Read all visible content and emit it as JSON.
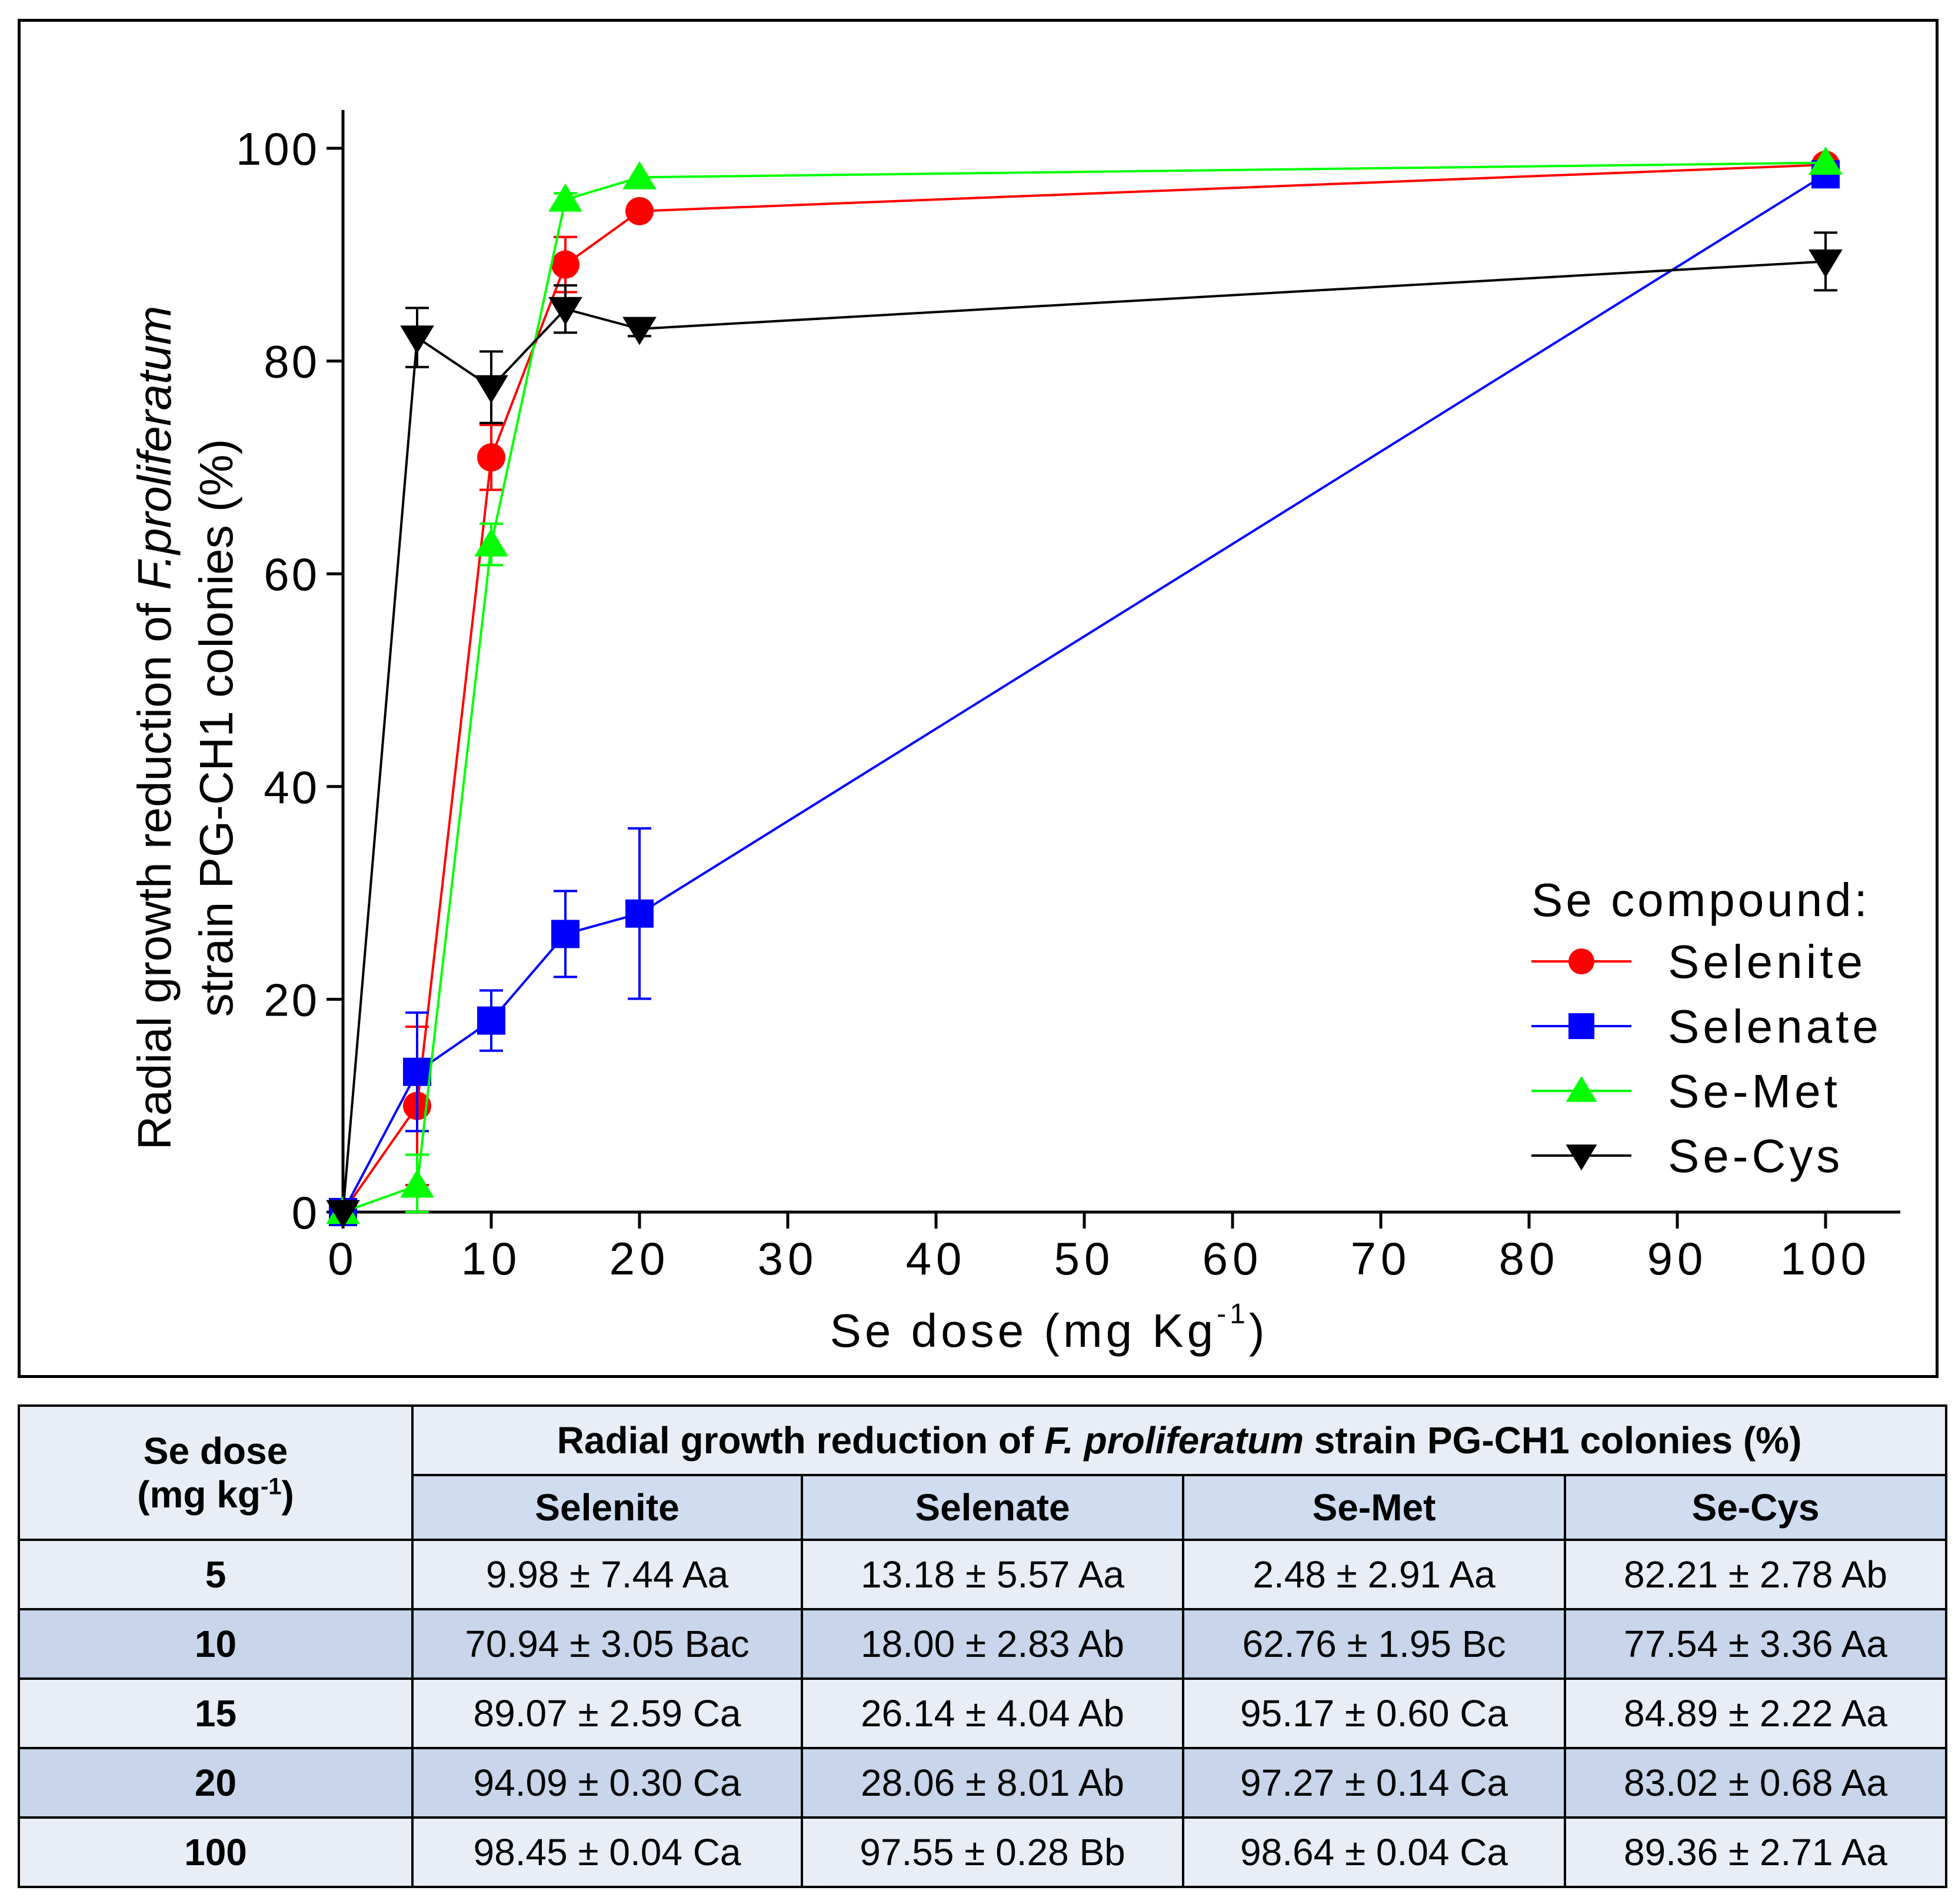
{
  "chart_data": {
    "type": "line",
    "xlabel": "Se dose (mg Kg",
    "xlabel_sup": "-1",
    "xlabel_end": ")",
    "ylabel_line1_prefix": "Radial growth reduction of ",
    "ylabel_line1_italic": "F.proliferatum",
    "ylabel_line2": "strain PG-CH1 colonies (%)",
    "xlim": [
      0,
      105
    ],
    "ylim": [
      0,
      100
    ],
    "x_ticks": [
      0,
      10,
      20,
      30,
      40,
      50,
      60,
      70,
      80,
      90,
      100
    ],
    "y_ticks": [
      0,
      20,
      40,
      60,
      80,
      100
    ],
    "x_tick_labels": [
      "0",
      "10",
      "20",
      "30",
      "40",
      "50",
      "60",
      "70",
      "80",
      "90",
      "100"
    ],
    "y_tick_labels": [
      "0",
      "20",
      "40",
      "60",
      "80",
      "100"
    ],
    "legend_title": "Se compound:",
    "legend_position": "bottom-right",
    "grid": false,
    "x": [
      0,
      5,
      10,
      15,
      20,
      100
    ],
    "series": [
      {
        "name": "Selenite",
        "color": "#ff0000",
        "marker": "circle",
        "values": [
          0,
          9.98,
          70.94,
          89.07,
          94.09,
          98.45
        ],
        "errors": [
          0,
          7.44,
          3.05,
          2.59,
          0.3,
          0.04
        ]
      },
      {
        "name": "Selenate",
        "color": "#0000ff",
        "marker": "square",
        "values": [
          0,
          13.18,
          18.0,
          26.14,
          28.06,
          97.55
        ],
        "errors": [
          0,
          5.57,
          2.83,
          4.04,
          8.01,
          0.28
        ]
      },
      {
        "name": "Se-Met",
        "color": "#00ff00",
        "marker": "triangle-up",
        "values": [
          0,
          2.48,
          62.76,
          95.17,
          97.27,
          98.64
        ],
        "errors": [
          0,
          2.91,
          1.95,
          0.6,
          0.14,
          0.04
        ]
      },
      {
        "name": "Se-Cys",
        "color": "#000000",
        "marker": "triangle-down",
        "values": [
          0,
          82.21,
          77.54,
          84.89,
          83.02,
          89.36
        ],
        "errors": [
          0,
          2.78,
          3.36,
          2.22,
          0.68,
          2.71
        ]
      }
    ]
  },
  "table": {
    "col1_header_line1": "Se dose",
    "col1_header_line2": "(mg kg",
    "col1_header_sup": "-1",
    "col1_header_end": ")",
    "group_header_prefix": "Radial growth reduction of ",
    "group_header_italic": "F. proliferatum",
    "group_header_suffix": " strain PG-CH1 colonies (%)",
    "columns": [
      "Selenite",
      "Selenate",
      "Se-Met",
      "Se-Cys"
    ],
    "rows": [
      {
        "dose": "5",
        "cells": [
          "9.98 ± 7.44 Aa",
          "13.18 ± 5.57 Aa",
          "2.48 ± 2.91 Aa",
          "82.21 ± 2.78 Ab"
        ]
      },
      {
        "dose": "10",
        "cells": [
          "70.94 ± 3.05 Bac",
          "18.00 ± 2.83 Ab",
          "62.76 ± 1.95 Bc",
          "77.54 ± 3.36 Aa"
        ]
      },
      {
        "dose": "15",
        "cells": [
          "89.07 ± 2.59 Ca",
          "26.14 ± 4.04 Ab",
          "95.17 ± 0.60 Ca",
          "84.89 ± 2.22 Aa"
        ]
      },
      {
        "dose": "20",
        "cells": [
          "94.09 ± 0.30 Ca",
          "28.06 ± 8.01 Ab",
          "97.27 ± 0.14 Ca",
          "83.02 ± 0.68 Aa"
        ]
      },
      {
        "dose": "100",
        "cells": [
          "98.45 ± 0.04 Ca",
          "97.55 ± 0.28 Bb",
          "98.64 ± 0.04 Ca",
          "89.36 ± 2.71 Aa"
        ]
      }
    ]
  }
}
